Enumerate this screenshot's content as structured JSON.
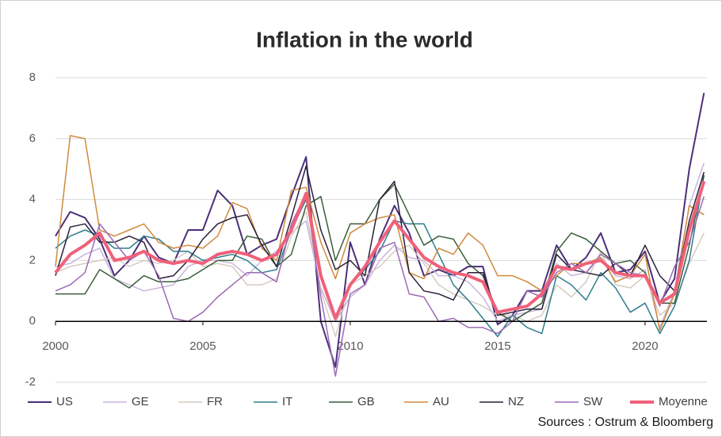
{
  "chart_data": {
    "type": "line",
    "title": "Inflation in the world",
    "source": "Sources : Ostrum & Bloomberg",
    "x": [
      2000,
      2000.5,
      2001,
      2001.5,
      2002,
      2002.5,
      2003,
      2003.5,
      2004,
      2004.5,
      2005,
      2005.5,
      2006,
      2006.5,
      2007,
      2007.5,
      2008,
      2008.5,
      2009,
      2009.5,
      2010,
      2010.5,
      2011,
      2011.5,
      2012,
      2012.5,
      2013,
      2013.5,
      2014,
      2014.5,
      2015,
      2015.5,
      2016,
      2016.5,
      2017,
      2017.5,
      2018,
      2018.5,
      2019,
      2019.5,
      2020,
      2020.5,
      2021,
      2021.5,
      2022
    ],
    "xlim": [
      2000,
      2022.1
    ],
    "xticks": [
      2000,
      2005,
      2010,
      2015,
      2020
    ],
    "ylim": [
      -2,
      8
    ],
    "yticks": [
      -2,
      0,
      2,
      4,
      6,
      8
    ],
    "grid": true,
    "legend": "bottom",
    "series": [
      {
        "name": "US",
        "color": "#4b2f7a",
        "width": 2,
        "values": [
          2.8,
          3.6,
          3.4,
          2.7,
          1.5,
          2.0,
          2.8,
          2.1,
          1.9,
          3.0,
          3.0,
          4.3,
          3.8,
          2.2,
          2.5,
          2.7,
          4.1,
          5.4,
          0.0,
          -1.5,
          2.6,
          1.2,
          2.7,
          3.8,
          2.9,
          1.5,
          1.7,
          1.5,
          1.8,
          1.8,
          -0.1,
          0.2,
          1.0,
          1.0,
          2.5,
          1.7,
          2.1,
          2.9,
          1.6,
          1.7,
          2.3,
          0.6,
          1.4,
          5.0,
          7.5
        ]
      },
      {
        "name": "GE",
        "color": "#c8b6dc",
        "width": 1.5,
        "values": [
          1.8,
          1.9,
          2.2,
          2.4,
          1.4,
          1.2,
          1.0,
          1.1,
          1.2,
          1.8,
          2.0,
          2.0,
          1.9,
          1.5,
          2.0,
          2.3,
          2.9,
          3.3,
          1.1,
          0.0,
          0.8,
          1.2,
          2.0,
          2.5,
          2.1,
          2.0,
          1.5,
          1.5,
          1.3,
          0.8,
          0.0,
          0.2,
          0.3,
          0.4,
          1.9,
          1.5,
          1.6,
          2.1,
          1.5,
          1.4,
          1.7,
          -0.2,
          1.0,
          3.8,
          5.2
        ]
      },
      {
        "name": "FR",
        "color": "#d6cbc1",
        "width": 1.5,
        "values": [
          1.6,
          1.8,
          1.9,
          2.0,
          2.1,
          1.8,
          2.0,
          1.9,
          2.0,
          2.3,
          1.8,
          1.9,
          1.8,
          1.2,
          1.2,
          1.4,
          2.8,
          3.6,
          1.0,
          -0.5,
          1.2,
          1.5,
          1.8,
          2.3,
          2.5,
          1.9,
          1.2,
          0.9,
          0.7,
          0.5,
          0.2,
          0.2,
          0.0,
          0.2,
          1.2,
          0.8,
          1.3,
          2.3,
          1.2,
          1.1,
          1.5,
          0.2,
          0.6,
          1.9,
          2.9
        ]
      },
      {
        "name": "IT",
        "color": "#2e7d8c",
        "width": 1.5,
        "values": [
          2.4,
          2.8,
          3.0,
          2.8,
          2.4,
          2.4,
          2.8,
          2.7,
          2.3,
          2.3,
          2.0,
          2.1,
          2.2,
          2.0,
          1.6,
          1.7,
          3.0,
          4.0,
          1.6,
          0.1,
          1.2,
          1.7,
          2.3,
          3.3,
          3.2,
          3.2,
          2.2,
          1.2,
          0.7,
          0.1,
          -0.5,
          0.2,
          -0.2,
          -0.4,
          1.5,
          1.2,
          0.7,
          1.6,
          1.1,
          0.3,
          0.6,
          -0.4,
          0.5,
          2.0,
          4.8
        ]
      },
      {
        "name": "GB",
        "color": "#3b5e3a",
        "width": 1.5,
        "values": [
          0.9,
          0.9,
          0.9,
          1.7,
          1.4,
          1.1,
          1.5,
          1.3,
          1.3,
          1.4,
          1.7,
          2.0,
          2.0,
          2.8,
          2.7,
          1.8,
          2.2,
          3.8,
          4.1,
          2.0,
          3.2,
          3.2,
          4.0,
          4.5,
          3.5,
          2.5,
          2.8,
          2.7,
          1.9,
          1.5,
          0.3,
          0.0,
          0.3,
          0.6,
          2.3,
          2.9,
          2.7,
          2.3,
          1.9,
          2.0,
          1.6,
          0.6,
          0.6,
          2.5,
          4.8
        ]
      },
      {
        "name": "AU",
        "color": "#d08a3c",
        "width": 1.5,
        "values": [
          1.8,
          6.1,
          6.0,
          3.0,
          2.8,
          3.0,
          3.2,
          2.6,
          2.4,
          2.5,
          2.4,
          2.8,
          3.9,
          3.7,
          2.4,
          2.0,
          4.3,
          4.4,
          2.6,
          1.4,
          2.9,
          3.2,
          3.4,
          3.5,
          1.6,
          1.4,
          2.4,
          2.2,
          2.9,
          2.5,
          1.5,
          1.5,
          1.3,
          1.0,
          1.5,
          1.9,
          1.9,
          2.1,
          1.3,
          1.5,
          2.2,
          -0.3,
          0.9,
          3.8,
          3.5
        ]
      },
      {
        "name": "NZ",
        "color": "#2a1f3a",
        "width": 1.5,
        "values": [
          1.5,
          3.1,
          3.2,
          2.6,
          2.6,
          2.8,
          2.6,
          1.4,
          1.5,
          2.0,
          2.7,
          3.2,
          3.4,
          3.5,
          2.5,
          1.8,
          3.4,
          5.1,
          3.0,
          1.7,
          2.0,
          1.5,
          4.0,
          4.6,
          1.6,
          1.0,
          0.9,
          0.7,
          1.6,
          1.6,
          0.2,
          0.3,
          0.4,
          0.4,
          2.2,
          1.7,
          1.6,
          1.5,
          1.9,
          1.5,
          2.5,
          1.5,
          1.0,
          3.3,
          4.9
        ]
      },
      {
        "name": "SW",
        "color": "#9b6bb5",
        "width": 1.5,
        "values": [
          1.0,
          1.2,
          1.6,
          3.2,
          2.6,
          2.0,
          2.3,
          1.5,
          0.1,
          0.0,
          0.3,
          0.8,
          1.2,
          1.6,
          1.6,
          1.3,
          3.2,
          4.2,
          0.8,
          -1.8,
          0.9,
          1.2,
          2.4,
          2.6,
          0.9,
          0.8,
          0.0,
          0.1,
          -0.2,
          -0.2,
          -0.4,
          0.0,
          1.0,
          0.8,
          1.6,
          1.9,
          1.6,
          2.2,
          1.9,
          1.6,
          1.5,
          0.5,
          1.8,
          2.6,
          4.1
        ]
      },
      {
        "name": "Moyenne",
        "color": "#f0607a",
        "width": 4,
        "values": [
          1.6,
          2.2,
          2.5,
          2.9,
          2.0,
          2.1,
          2.3,
          2.0,
          1.9,
          2.0,
          1.9,
          2.2,
          2.3,
          2.2,
          2.0,
          2.2,
          3.0,
          4.2,
          1.5,
          0.1,
          1.2,
          1.8,
          2.6,
          3.3,
          2.7,
          2.1,
          1.8,
          1.6,
          1.5,
          1.3,
          0.3,
          0.4,
          0.5,
          0.9,
          1.8,
          1.7,
          1.9,
          2.0,
          1.6,
          1.5,
          1.5,
          0.6,
          0.9,
          3.0,
          4.6
        ]
      }
    ]
  }
}
